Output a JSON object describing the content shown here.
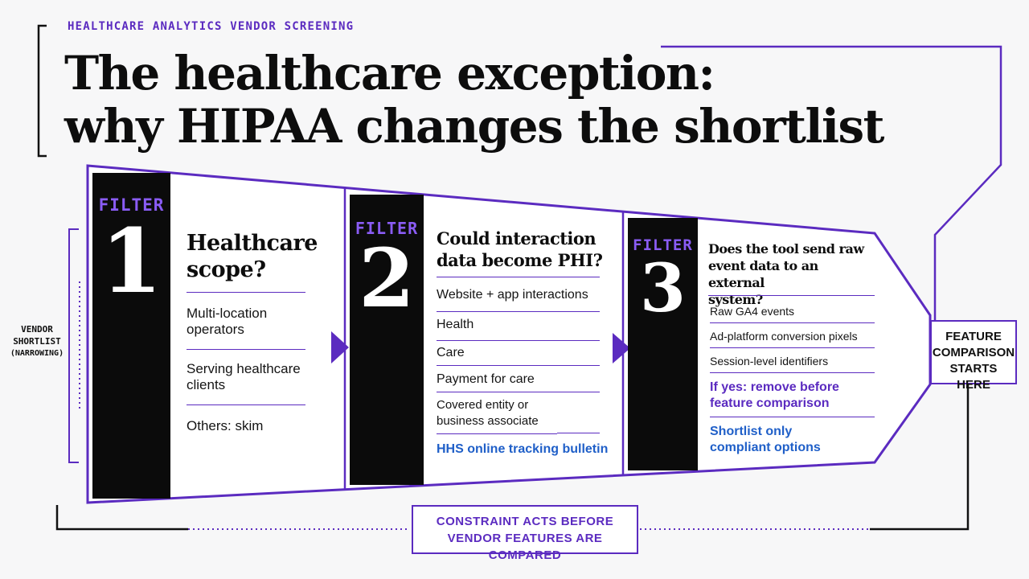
{
  "header": {
    "eyebrow": "HEALTHCARE ANALYTICS VENDOR SCREENING",
    "title_line1": "The healthcare exception:",
    "title_line2": "why HIPAA changes the shortlist"
  },
  "side_label": {
    "line1": "VENDOR",
    "line2": "SHORTLIST",
    "line3": "(NARROWING)"
  },
  "filters": [
    {
      "tag": "FILTER",
      "number": "1",
      "question_line1": "Healthcare",
      "question_line2": "scope?",
      "items": [
        "Multi-location operators",
        "Serving healthcare clients",
        "Others: skim"
      ]
    },
    {
      "tag": "FILTER",
      "number": "2",
      "question_line1": "Could interaction",
      "question_line2": "data become PHI?",
      "items": [
        "Website + app interactions",
        "Health",
        "Care",
        "Payment for care",
        "Covered entity or business associate"
      ],
      "link": "HHS online tracking bulletin"
    },
    {
      "tag": "FILTER",
      "number": "3",
      "question_line1": "Does the tool send raw",
      "question_line2": "event data to an external",
      "question_line3": "system?",
      "items": [
        "Raw GA4 events",
        "Ad-platform conversion pixels",
        "Session-level identifiers"
      ],
      "action": "If yes: remove before feature comparison",
      "result": "Shortlist only compliant options"
    }
  ],
  "end_box": {
    "line1": "FEATURE",
    "line2": "COMPARISON",
    "line3": "STARTS HERE"
  },
  "bottom_box": {
    "line1": "CONSTRAINT ACTS BEFORE",
    "line2": "VENDOR FEATURES ARE COMPARED"
  },
  "colors": {
    "accent": "#5b2bc0",
    "link": "#1f5fc8",
    "dark": "#0b0b0b"
  }
}
